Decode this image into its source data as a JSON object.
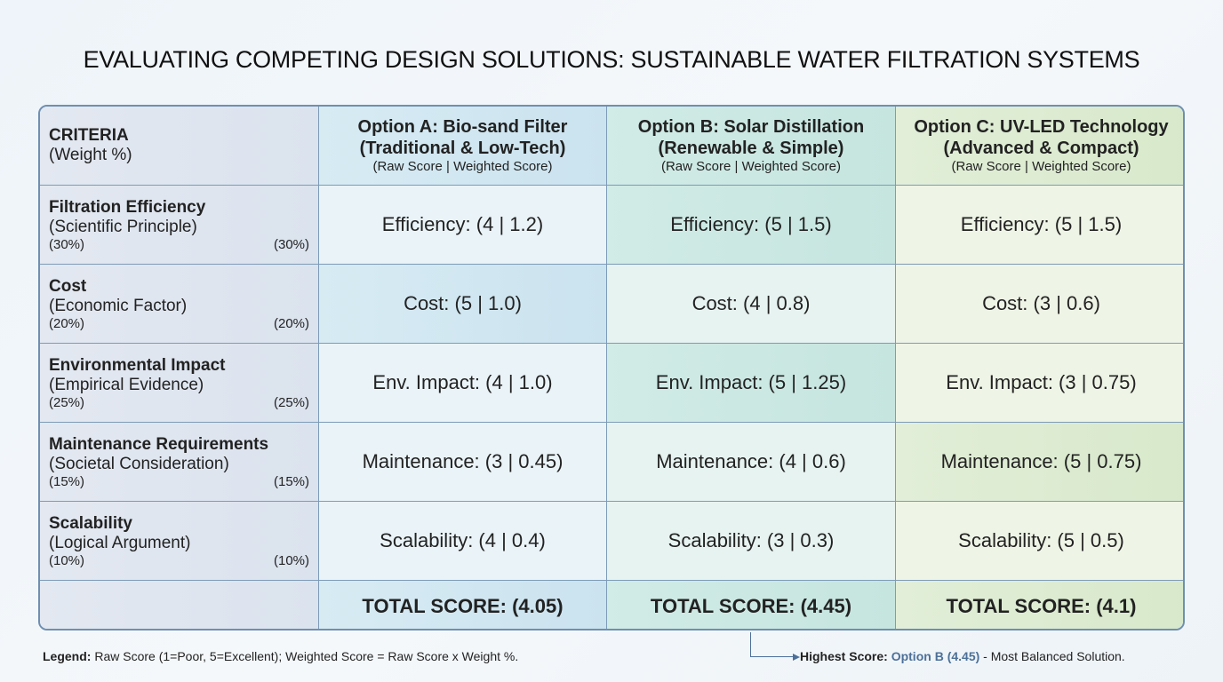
{
  "title": "EVALUATING COMPETING DESIGN SOLUTIONS: SUSTAINABLE WATER FILTRATION SYSTEMS",
  "header": {
    "criteria": {
      "label": "CRITERIA",
      "sub": "(Weight %)"
    },
    "options": [
      {
        "name": "Option A: Bio-sand Filter",
        "desc": "(Traditional & Low-Tech)",
        "sub": "(Raw Score | Weighted Score)"
      },
      {
        "name": "Option B: Solar Distillation",
        "desc": "(Renewable & Simple)",
        "sub": "(Raw Score | Weighted Score)"
      },
      {
        "name": "Option C: UV-LED Technology",
        "desc": "(Advanced & Compact)",
        "sub": "(Raw Score | Weighted Score)"
      }
    ]
  },
  "rows": [
    {
      "name": "Filtration Efficiency",
      "sub": "(Scientific Principle)",
      "weight_left": "(30%)",
      "weight_right": "(30%)",
      "cells": [
        "Efficiency: (4 | 1.2)",
        "Efficiency: (5 | 1.5)",
        "Efficiency: (5 | 1.5)"
      ]
    },
    {
      "name": "Cost",
      "sub": "(Economic Factor)",
      "weight_left": "(20%)",
      "weight_right": "(20%)",
      "cells": [
        "Cost: (5 | 1.0)",
        "Cost: (4 | 0.8)",
        "Cost: (3 | 0.6)"
      ]
    },
    {
      "name": "Environmental Impact",
      "sub": "(Empirical Evidence)",
      "weight_left": "(25%)",
      "weight_right": "(25%)",
      "cells": [
        "Env. Impact: (4 | 1.0)",
        "Env. Impact: (5 | 1.25)",
        "Env. Impact: (3 | 0.75)"
      ]
    },
    {
      "name": "Maintenance Requirements",
      "sub": "(Societal Consideration)",
      "weight_left": "(15%)",
      "weight_right": "(15%)",
      "cells": [
        "Maintenance: (3 | 0.45)",
        "Maintenance: (4 | 0.6)",
        "Maintenance: (5 | 0.75)"
      ]
    },
    {
      "name": "Scalability",
      "sub": "(Logical Argument)",
      "weight_left": "(10%)",
      "weight_right": "(10%)",
      "cells": [
        "Scalability: (4 | 0.4)",
        "Scalability: (3 | 0.3)",
        "Scalability: (5 | 0.5)"
      ]
    }
  ],
  "totals": [
    "TOTAL SCORE: (4.05)",
    "TOTAL SCORE: (4.45)",
    "TOTAL SCORE: (4.1)"
  ],
  "legend": {
    "label": "Legend:",
    "text": " Raw Score (1=Poor, 5=Excellent); Weighted Score = Raw Score x Weight %."
  },
  "highest": {
    "label": "Highest Score:",
    "option": "Option B (4.45)",
    "text": " - Most Balanced Solution."
  },
  "colors": {
    "border": "#6f8fb0",
    "option_a": "#d7ebf3",
    "option_b": "#d1ebe6",
    "option_c": "#e2eed8",
    "highlight_text": "#4c7099"
  }
}
